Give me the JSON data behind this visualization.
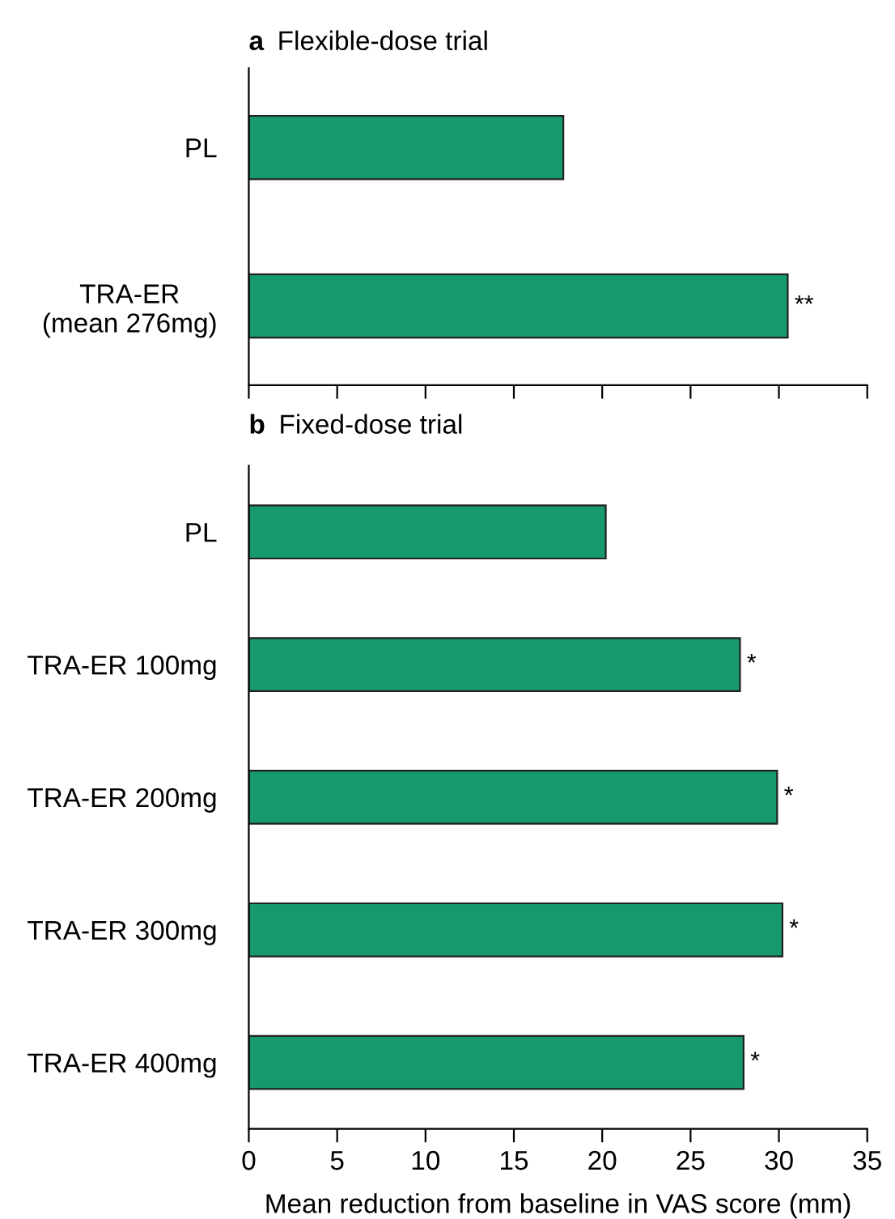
{
  "chart_data": [
    {
      "type": "bar",
      "orientation": "horizontal",
      "title": "a Flexible-dose trial",
      "categories": [
        "PL",
        "TRA-ER\n(mean 276mg)"
      ],
      "values": [
        17.8,
        30.5
      ],
      "color": "#17996e",
      "xlim": [
        0,
        35
      ],
      "xticks": [
        0,
        5,
        10,
        15,
        20,
        25,
        30,
        35
      ],
      "tick_labels": "y",
      "grid": false,
      "legend": false,
      "annotations": [
        {
          "text": "**",
          "x": 30.5,
          "y": "TRA-ER\n(mean 276mg)"
        }
      ]
    },
    {
      "type": "bar",
      "orientation": "horizontal",
      "title": "b Fixed-dose trial",
      "xlabel": "Mean reduction from baseline in VAS score (mm)",
      "categories": [
        "PL",
        "TRA-ER 100mg",
        "TRA-ER 200mg",
        "TRA-ER 300mg",
        "TRA-ER 400mg"
      ],
      "values": [
        20.2,
        27.8,
        29.9,
        30.2,
        28.0
      ],
      "color": "#17996e",
      "xlim": [
        0,
        35
      ],
      "xticks": [
        0,
        5,
        10,
        15,
        20,
        25,
        30,
        35
      ],
      "grid": false,
      "legend": false,
      "annotations": [
        {
          "text": "*",
          "x": 27.8,
          "y": "TRA-ER 100mg"
        },
        {
          "text": "*",
          "x": 29.9,
          "y": "TRA-ER 200mg"
        },
        {
          "text": "*",
          "x": 30.2,
          "y": "TRA-ER 300mg"
        },
        {
          "text": "*",
          "x": 28.0,
          "y": "TRA-ER 400mg"
        }
      ]
    }
  ]
}
